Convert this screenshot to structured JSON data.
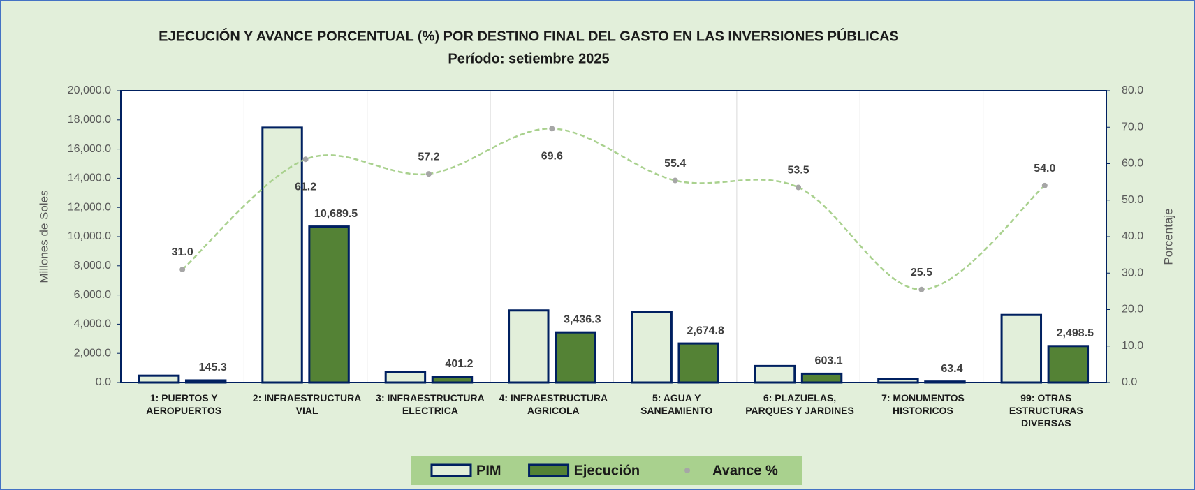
{
  "chart_data": {
    "type": "bar",
    "title": "EJECUCIÓN Y AVANCE PORCENTUAL (%)  POR DESTINO FINAL DEL GASTO EN LAS INVERSIONES PÚBLICAS",
    "subtitle": "Período: setiembre    2025",
    "y_label": "Millones de Soles",
    "y2_label": "Porcentaje",
    "categories": [
      "1: PUERTOS Y AEROPUERTOS",
      "2: INFRAESTRUCTURA VIAL",
      "3: INFRAESTRUCTURA ELECTRICA",
      "4: INFRAESTRUCTURA AGRICOLA",
      "5: AGUA Y SANEAMIENTO",
      "6: PLAZUELAS, PARQUES Y JARDINES",
      "7: MONUMENTOS HISTORICOS",
      "99: OTRAS ESTRUCTURAS DIVERSAS"
    ],
    "series": [
      {
        "name": "PIM",
        "type": "bar",
        "color": "#e2efda",
        "stroke": "#002060",
        "values": [
          470,
          17470,
          700,
          4940,
          4830,
          1130,
          250,
          4630
        ]
      },
      {
        "name": "Ejecución",
        "type": "bar",
        "color": "#548235",
        "stroke": "#002060",
        "values": [
          145.3,
          10689.5,
          401.2,
          3436.3,
          2674.8,
          603.1,
          63.4,
          2498.5
        ],
        "value_labels": [
          "145.3",
          "10,689.5",
          "401.2",
          "3,436.3",
          "2,674.8",
          "603.1",
          "63.4",
          "2,498.5"
        ]
      },
      {
        "name": "Avance %",
        "type": "line",
        "axis": "y2",
        "color": "#a9d18e",
        "marker_color": "#a6a6a6",
        "values": [
          31.0,
          61.2,
          57.2,
          69.6,
          55.4,
          53.5,
          25.5,
          54.0
        ],
        "value_labels": [
          "31.0",
          "61.2",
          "57.2",
          "69.6",
          "55.4",
          "53.5",
          "25.5",
          "54.0"
        ]
      }
    ],
    "ylim": [
      0,
      20000
    ],
    "yticks": [
      {
        "value": 0,
        "label": "0.0"
      },
      {
        "value": 2000,
        "label": "2,000.0"
      },
      {
        "value": 4000,
        "label": "4,000.0"
      },
      {
        "value": 6000,
        "label": "6,000.0"
      },
      {
        "value": 8000,
        "label": "8,000.0"
      },
      {
        "value": 10000,
        "label": "10,000.0"
      },
      {
        "value": 12000,
        "label": "12,000.0"
      },
      {
        "value": 14000,
        "label": "14,000.0"
      },
      {
        "value": 16000,
        "label": "16,000.0"
      },
      {
        "value": 18000,
        "label": "18,000.0"
      },
      {
        "value": 20000,
        "label": "20,000.0"
      }
    ],
    "y2lim": [
      0,
      80
    ],
    "y2ticks": [
      {
        "value": 0,
        "label": "0.0"
      },
      {
        "value": 10,
        "label": "10.0"
      },
      {
        "value": 20,
        "label": "20.0"
      },
      {
        "value": 30,
        "label": "30.0"
      },
      {
        "value": 40,
        "label": "40.0"
      },
      {
        "value": 50,
        "label": "50.0"
      },
      {
        "value": 60,
        "label": "60.0"
      },
      {
        "value": 70,
        "label": "70.0"
      },
      {
        "value": 80,
        "label": "80.0"
      }
    ],
    "legend": "bottom"
  }
}
